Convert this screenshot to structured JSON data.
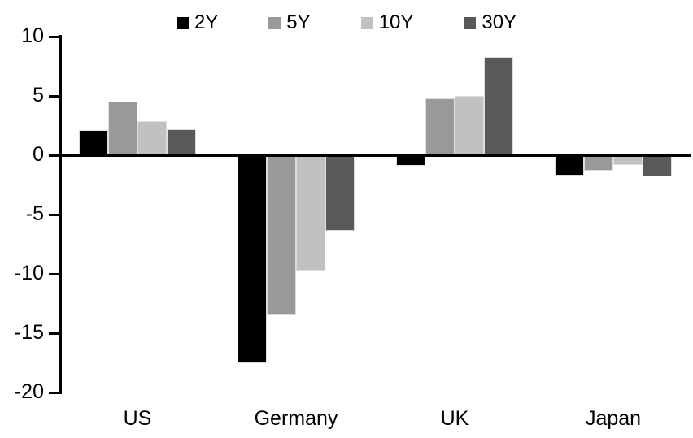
{
  "chart_data": {
    "type": "bar",
    "title": "",
    "xlabel": "",
    "ylabel": "",
    "categories": [
      "US",
      "Germany",
      "UK",
      "Japan"
    ],
    "series": [
      {
        "name": "2Y",
        "color": "#000000",
        "values": [
          2.1,
          -17.5,
          -0.9,
          -1.7
        ]
      },
      {
        "name": "5Y",
        "color": "#999999",
        "values": [
          4.5,
          -13.5,
          4.8,
          -1.3
        ]
      },
      {
        "name": "10Y",
        "color": "#c1c1c1",
        "values": [
          2.9,
          -9.7,
          5.0,
          -0.8
        ]
      },
      {
        "name": "30Y",
        "color": "#595959",
        "values": [
          2.2,
          -6.4,
          8.3,
          -1.8
        ]
      }
    ],
    "ylim": [
      -20,
      10
    ],
    "yticks": [
      10,
      5,
      0,
      -5,
      -10,
      -15,
      -20
    ],
    "grid": false,
    "legend_position": "top",
    "axis_color": "#000000",
    "background_color": "#ffffff"
  }
}
